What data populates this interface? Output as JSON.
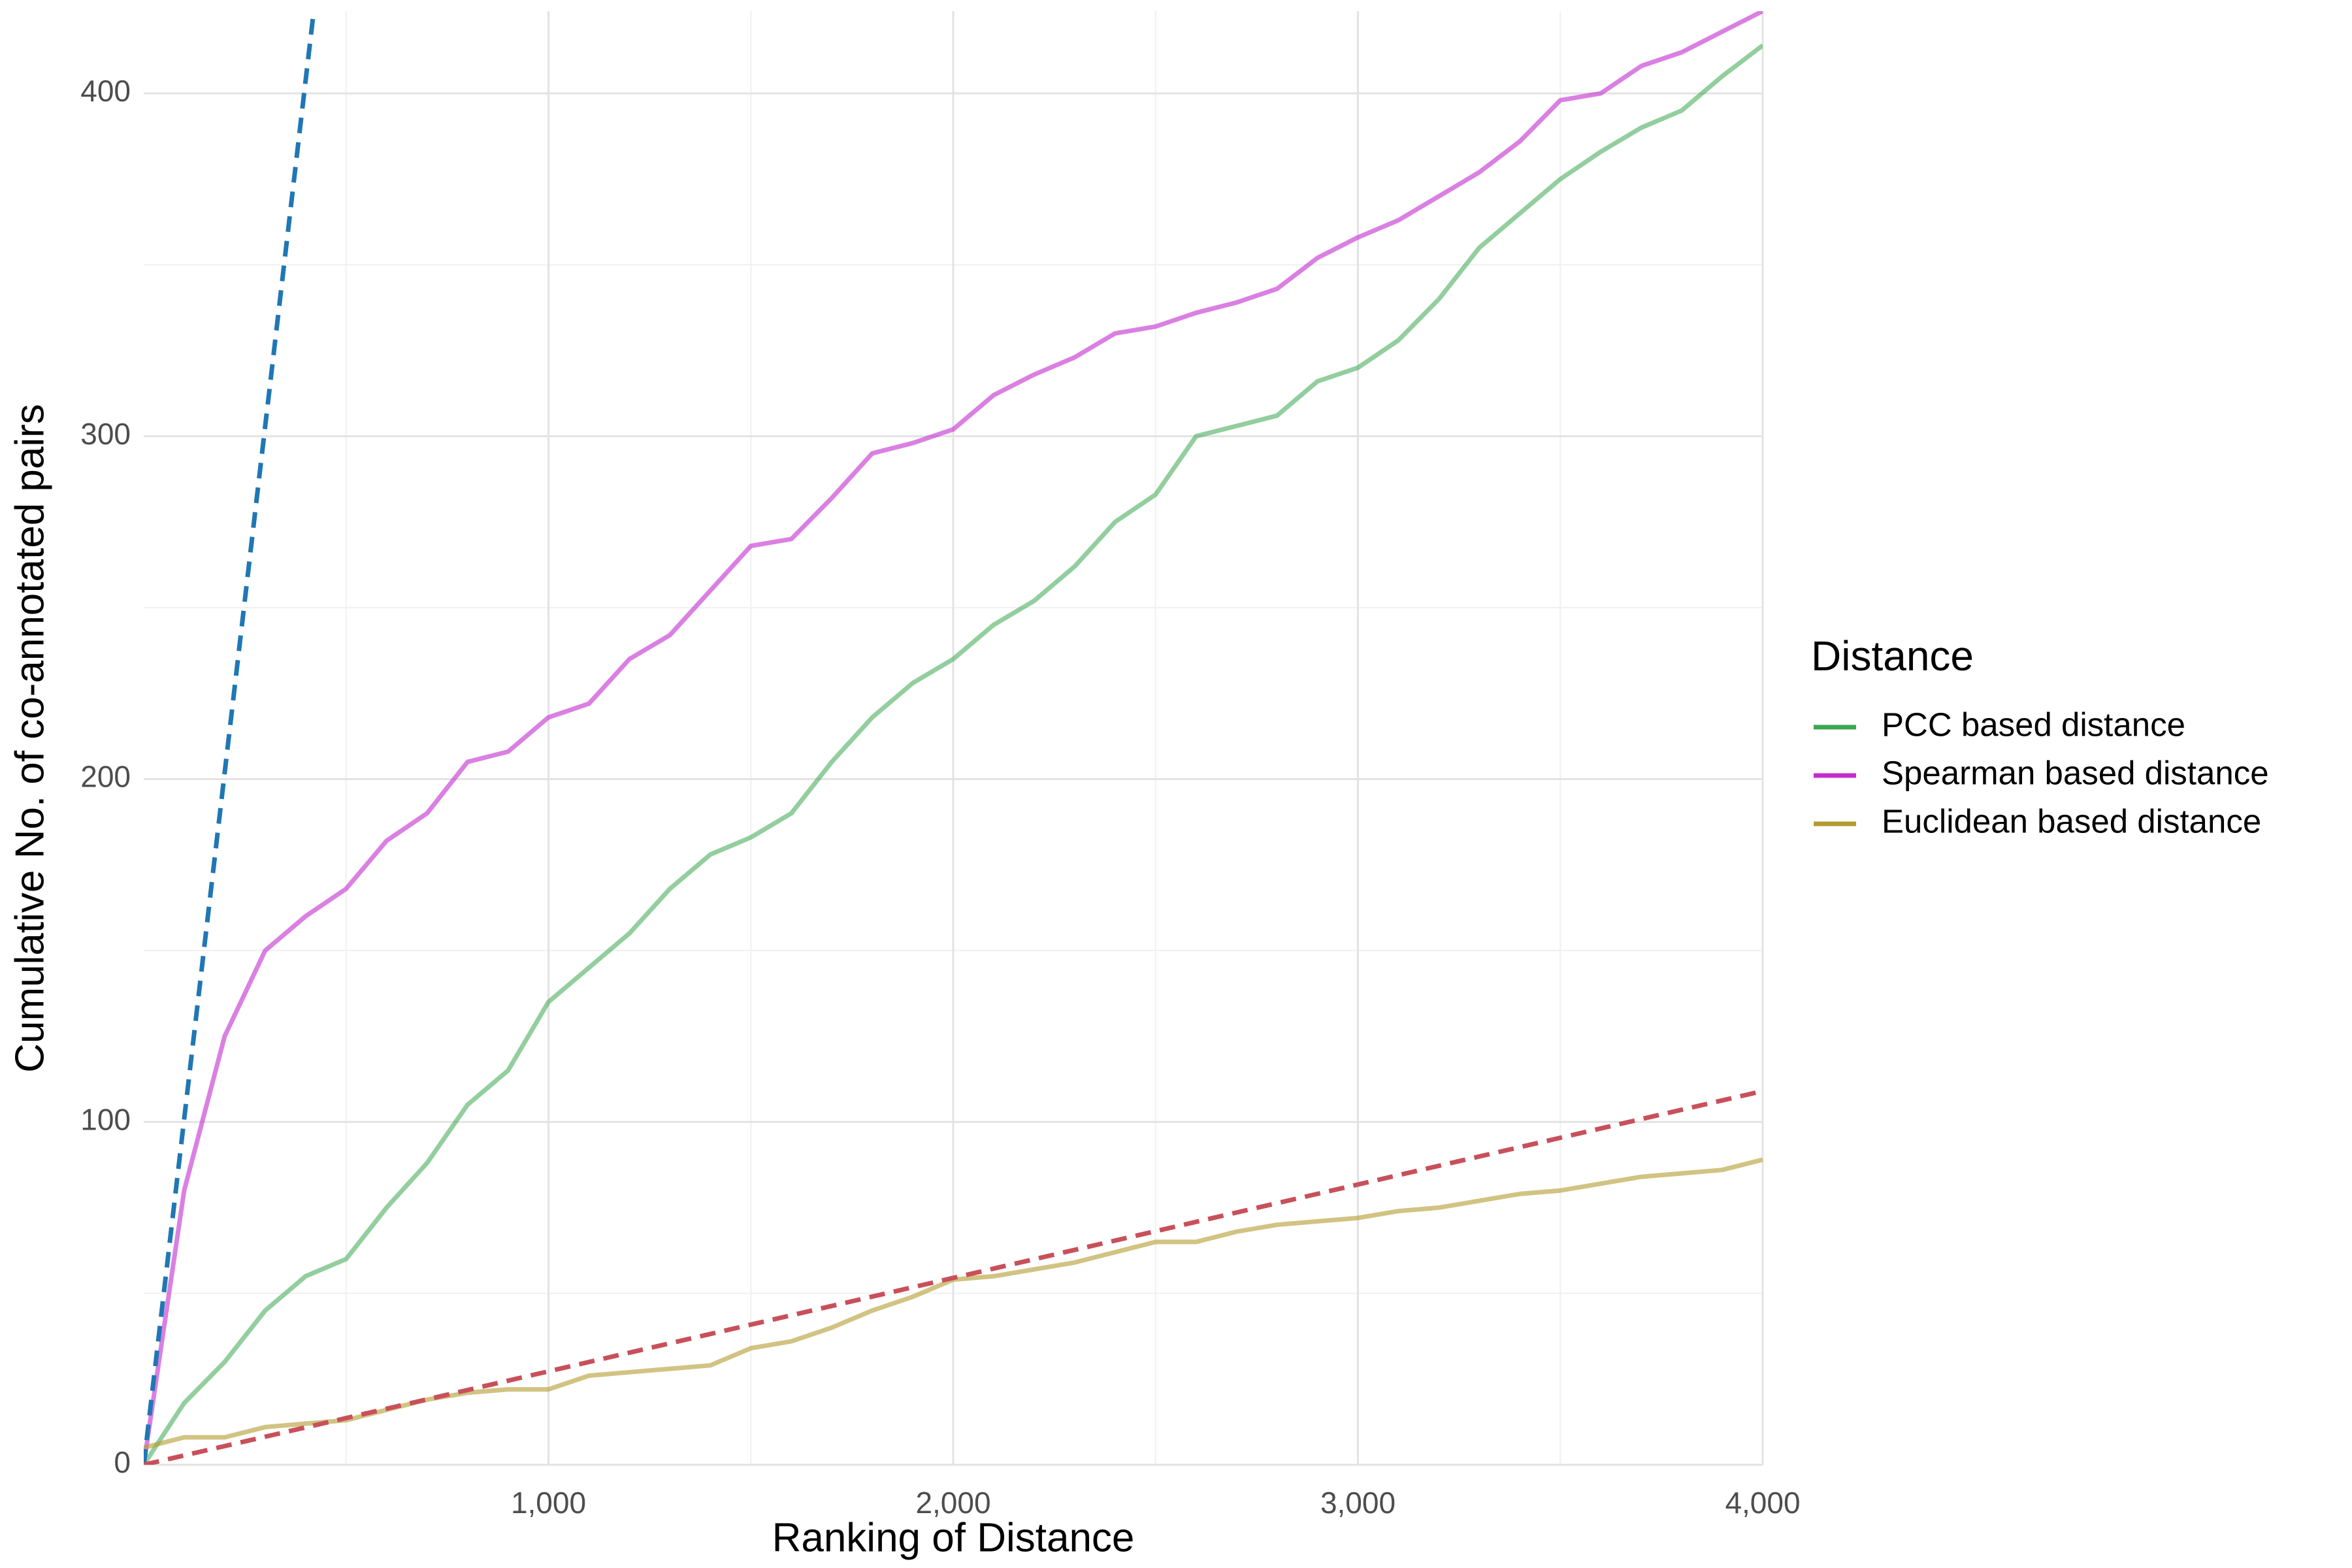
{
  "chart_data": {
    "type": "line",
    "x_label": "Ranking of Distance",
    "y_label": "Cumulative No. of co-annotated pairs",
    "legend_title": "Distance",
    "legend": "right",
    "grid": true,
    "xlim": [
      0,
      4000
    ],
    "ylim": [
      0,
      424
    ],
    "xticks": [
      {
        "value": 1000,
        "label": "1,000"
      },
      {
        "value": 2000,
        "label": "2,000"
      },
      {
        "value": 3000,
        "label": "3,000"
      },
      {
        "value": 4000,
        "label": "4,000"
      }
    ],
    "yticks": [
      0,
      100,
      200,
      300,
      400
    ],
    "xminor": [
      500,
      1500,
      2500,
      3500
    ],
    "yminor": [
      50,
      150,
      250,
      350
    ],
    "x": [
      0,
      100,
      200,
      300,
      400,
      500,
      600,
      700,
      800,
      900,
      1000,
      1100,
      1200,
      1300,
      1400,
      1500,
      1600,
      1700,
      1800,
      1900,
      2000,
      2100,
      2200,
      2300,
      2400,
      2500,
      2600,
      2700,
      2800,
      2900,
      3000,
      3100,
      3200,
      3300,
      3400,
      3500,
      3600,
      3700,
      3800,
      3900,
      4000
    ],
    "series": [
      {
        "name": "PCC based distance",
        "color": "#3aa64f",
        "opacity": 0.55,
        "values": [
          0,
          18,
          30,
          45,
          55,
          60,
          75,
          88,
          105,
          115,
          135,
          145,
          155,
          168,
          178,
          183,
          190,
          205,
          218,
          228,
          235,
          245,
          252,
          262,
          275,
          283,
          300,
          303,
          306,
          316,
          320,
          328,
          340,
          355,
          365,
          375,
          383,
          390,
          395,
          405,
          414
        ]
      },
      {
        "name": "Spearman based distance",
        "color": "#c22cce",
        "opacity": 0.6,
        "values": [
          0,
          80,
          125,
          150,
          160,
          168,
          182,
          190,
          205,
          208,
          218,
          222,
          235,
          242,
          255,
          268,
          270,
          282,
          295,
          298,
          302,
          312,
          318,
          323,
          330,
          332,
          336,
          339,
          343,
          352,
          358,
          363,
          370,
          377,
          386,
          398,
          400,
          408,
          412,
          418,
          424
        ]
      },
      {
        "name": "Euclidean based distance",
        "color": "#b39b2f",
        "opacity": 0.6,
        "values": [
          5,
          8,
          8,
          11,
          12,
          13,
          16,
          19,
          21,
          22,
          22,
          26,
          27,
          28,
          29,
          34,
          36,
          40,
          45,
          49,
          54,
          55,
          57,
          59,
          62,
          65,
          65,
          68,
          70,
          71,
          72,
          74,
          75,
          77,
          79,
          80,
          82,
          84,
          85,
          86,
          89
        ]
      },
      {
        "color": "#1f77b4",
        "dash": true,
        "x": [
          0,
          420
        ],
        "values": [
          0,
          424
        ]
      },
      {
        "color": "#c8505a",
        "dash": true,
        "x": [
          0,
          4000
        ],
        "values": [
          0,
          109
        ]
      }
    ]
  }
}
